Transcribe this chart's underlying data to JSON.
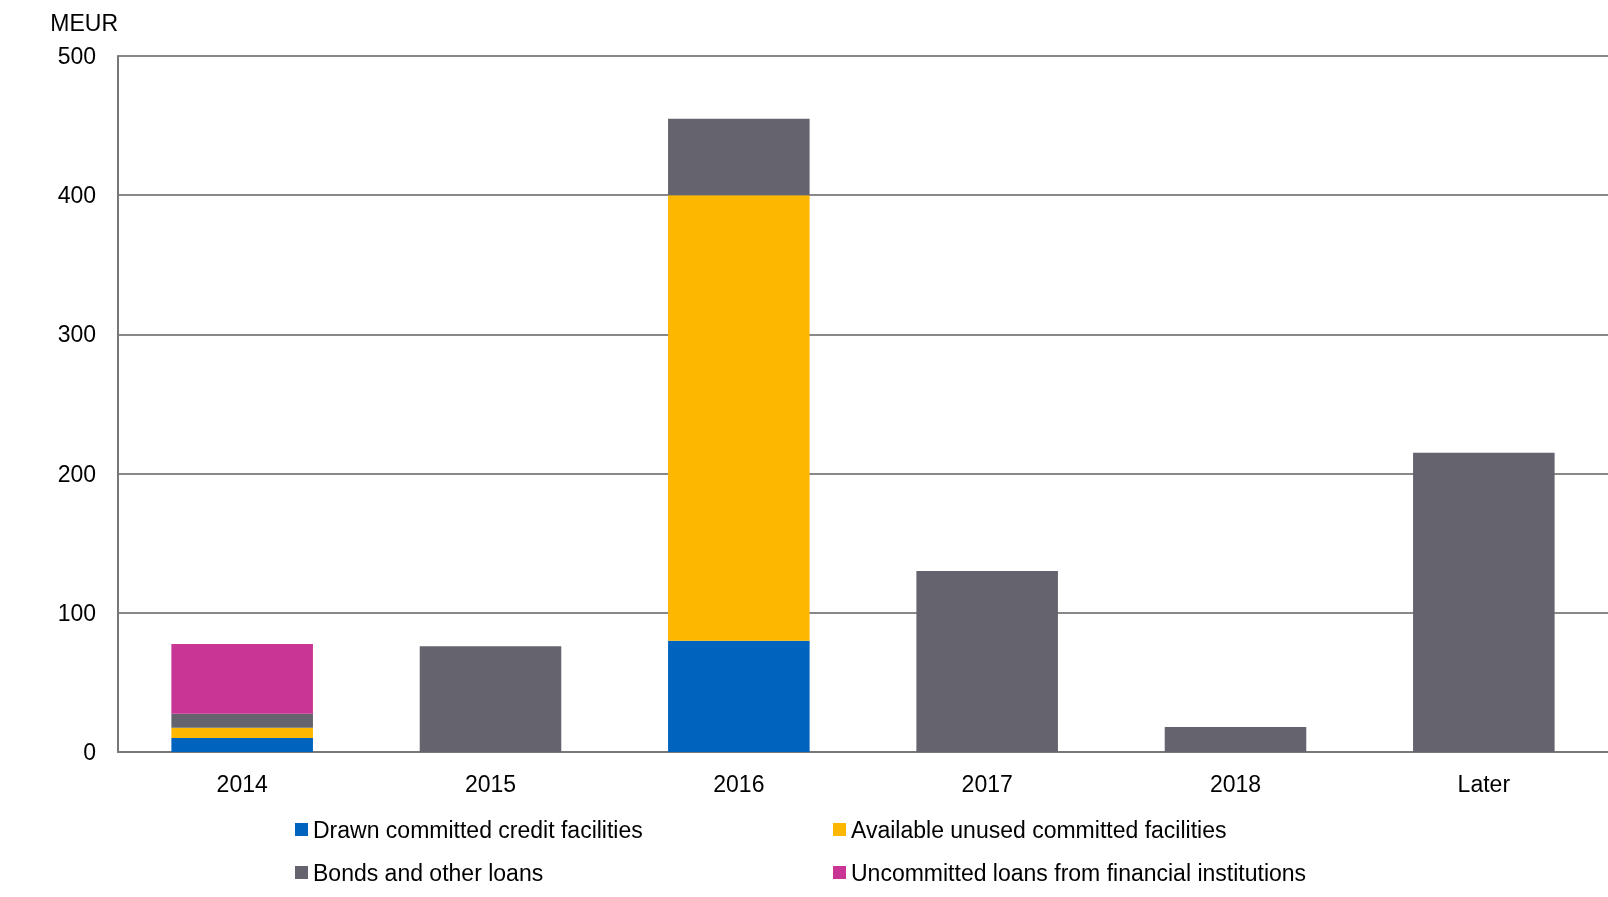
{
  "chart_data": {
    "type": "bar",
    "stacked": true,
    "ylabel": "MEUR",
    "categories": [
      "2014",
      "2015",
      "2016",
      "2017",
      "2018",
      "Later"
    ],
    "series": [
      {
        "name": "Drawn committed credit facilities",
        "color": "#0063be",
        "values": [
          10,
          null,
          80,
          null,
          null,
          null
        ]
      },
      {
        "name": "Available unused committed facilities",
        "color": "#fdb700",
        "values": [
          7.5,
          null,
          320,
          null,
          null,
          null
        ]
      },
      {
        "name": "Bonds and other loans",
        "color": "#65646e",
        "values": [
          10,
          76,
          55,
          130,
          18,
          215
        ]
      },
      {
        "name": "Uncommitted loans from financial institutions",
        "color": "#c83595",
        "values": [
          50,
          null,
          null,
          null,
          null,
          null
        ]
      }
    ],
    "ylim": [
      0,
      500
    ],
    "yticks": [
      0,
      100,
      200,
      300,
      400,
      500
    ],
    "grid": "y",
    "legend": "bottom"
  }
}
